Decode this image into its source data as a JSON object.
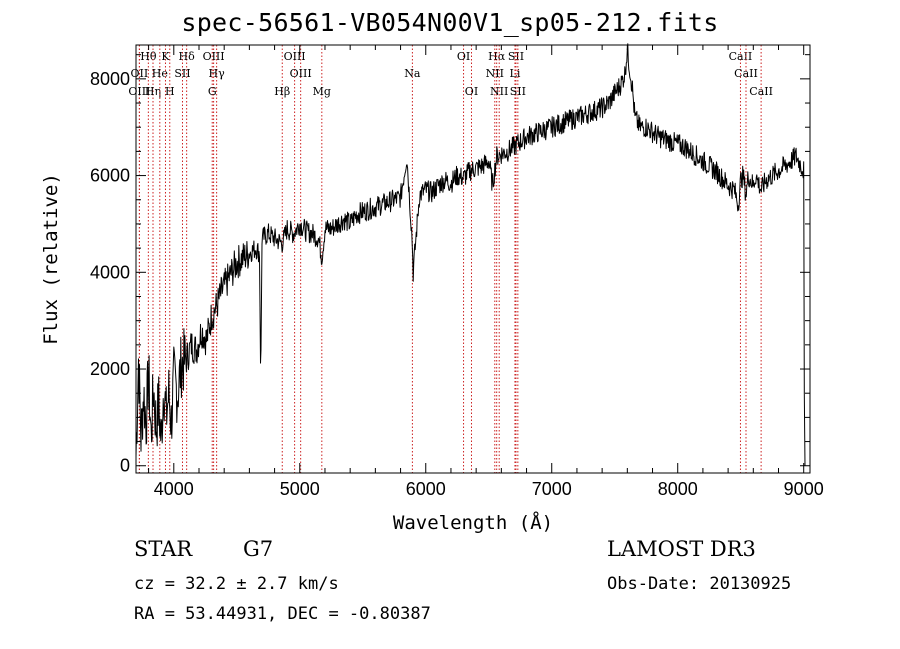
{
  "chart_data": {
    "type": "line",
    "title": "spec-56561-VB054N00V1_sp05-212.fits",
    "xlabel": "Wavelength (Å)",
    "ylabel": "Flux (relative)",
    "xlim": [
      3700,
      9050
    ],
    "ylim": [
      -150,
      8700
    ],
    "xticks": [
      4000,
      5000,
      6000,
      7000,
      8000,
      9000
    ],
    "yticks": [
      0,
      2000,
      4000,
      6000,
      8000
    ],
    "series": [
      {
        "name": "flux",
        "x": [
          3700,
          3720,
          3740,
          3760,
          3780,
          3800,
          3820,
          3840,
          3860,
          3880,
          3900,
          3920,
          3940,
          3960,
          3980,
          4000,
          4030,
          4060,
          4100,
          4140,
          4180,
          4220,
          4260,
          4300,
          4340,
          4380,
          4420,
          4460,
          4500,
          4550,
          4600,
          4650,
          4680,
          4690,
          4700,
          4750,
          4800,
          4861,
          4900,
          4950,
          5000,
          5050,
          5100,
          5150,
          5175,
          5200,
          5250,
          5300,
          5350,
          5400,
          5450,
          5500,
          5550,
          5600,
          5650,
          5700,
          5750,
          5800,
          5850,
          5890,
          5900,
          5950,
          6000,
          6050,
          6100,
          6150,
          6200,
          6250,
          6300,
          6350,
          6400,
          6450,
          6500,
          6530,
          6563,
          6600,
          6650,
          6700,
          6750,
          6800,
          6850,
          6900,
          6950,
          7000,
          7050,
          7100,
          7150,
          7200,
          7250,
          7300,
          7350,
          7400,
          7450,
          7500,
          7550,
          7580,
          7600,
          7620,
          7640,
          7660,
          7700,
          7750,
          7800,
          7850,
          7900,
          7950,
          8000,
          8050,
          8100,
          8150,
          8200,
          8250,
          8300,
          8350,
          8400,
          8450,
          8480,
          8500,
          8520,
          8542,
          8560,
          8600,
          8620,
          8662,
          8700,
          8750,
          8800,
          8850,
          8900,
          8940,
          8960,
          8980,
          9000
        ],
        "values": [
          200,
          2200,
          600,
          1500,
          900,
          1900,
          600,
          1600,
          800,
          1300,
          500,
          1700,
          1000,
          1500,
          900,
          1800,
          1500,
          2100,
          2200,
          2500,
          2400,
          2800,
          2600,
          3100,
          3300,
          3600,
          3800,
          4000,
          4200,
          4300,
          4400,
          4500,
          4400,
          1700,
          4700,
          4800,
          4700,
          4600,
          4900,
          4800,
          5000,
          4850,
          4800,
          4700,
          4300,
          4900,
          4900,
          5000,
          5100,
          5000,
          5200,
          5250,
          5300,
          5350,
          5400,
          5450,
          5500,
          5550,
          6400,
          4800,
          4000,
          5600,
          5700,
          5650,
          5800,
          5900,
          5850,
          6000,
          5950,
          6100,
          6150,
          6200,
          6300,
          5800,
          6400,
          6450,
          6500,
          6600,
          6700,
          6800,
          6850,
          6900,
          6950,
          7000,
          7050,
          7100,
          7150,
          7200,
          7250,
          7300,
          7350,
          7400,
          7500,
          7700,
          7900,
          8100,
          8600,
          8200,
          7800,
          7200,
          7000,
          7000,
          6900,
          6800,
          6750,
          6700,
          6650,
          6600,
          6500,
          6400,
          6300,
          6200,
          6100,
          5950,
          5800,
          5700,
          5400,
          5900,
          6000,
          5600,
          6000,
          5800,
          6000,
          5700,
          5900,
          6000,
          6100,
          6200,
          6300,
          6400,
          6300,
          6200,
          6100
        ]
      }
    ],
    "line_markers": [
      {
        "label": "Hθ",
        "wavelength": 3798,
        "row": 0
      },
      {
        "label": "OII",
        "wavelength": 3727,
        "row": 1
      },
      {
        "label": "OIII",
        "wavelength": 3727,
        "row": 2
      },
      {
        "label": "Hη",
        "wavelength": 3835,
        "row": 2
      },
      {
        "label": "He",
        "wavelength": 3889,
        "row": 1
      },
      {
        "label": "K",
        "wavelength": 3934,
        "row": 0
      },
      {
        "label": "H",
        "wavelength": 3968,
        "row": 2
      },
      {
        "label": "SII",
        "wavelength": 4069,
        "row": 1
      },
      {
        "label": "Hδ",
        "wavelength": 4102,
        "row": 0
      },
      {
        "label": "OIII",
        "wavelength": 4316,
        "row": 0
      },
      {
        "label": "Hγ",
        "wavelength": 4340,
        "row": 1
      },
      {
        "label": "G",
        "wavelength": 4305,
        "row": 2
      },
      {
        "label": "Hβ",
        "wavelength": 4861,
        "row": 2
      },
      {
        "label": "OIII",
        "wavelength": 4959,
        "row": 0
      },
      {
        "label": "OIII",
        "wavelength": 5007,
        "row": 1
      },
      {
        "label": "Mg",
        "wavelength": 5175,
        "row": 2
      },
      {
        "label": "Na",
        "wavelength": 5894,
        "row": 1
      },
      {
        "label": "OI",
        "wavelength": 6300,
        "row": 0
      },
      {
        "label": "OI",
        "wavelength": 6363,
        "row": 2
      },
      {
        "label": "Hα",
        "wavelength": 6563,
        "row": 0
      },
      {
        "label": "NII",
        "wavelength": 6548,
        "row": 1
      },
      {
        "label": "NII",
        "wavelength": 6583,
        "row": 2
      },
      {
        "label": "SII",
        "wavelength": 6716,
        "row": 0
      },
      {
        "label": "Li",
        "wavelength": 6708,
        "row": 1
      },
      {
        "label": "SII",
        "wavelength": 6731,
        "row": 2
      },
      {
        "label": "CaII",
        "wavelength": 8498,
        "row": 0
      },
      {
        "label": "CaII",
        "wavelength": 8542,
        "row": 1
      },
      {
        "label": "CaII",
        "wavelength": 8662,
        "row": 2
      }
    ],
    "line_color": "#000000",
    "marker_color": "#cc2222"
  },
  "info": {
    "object_class": "STAR",
    "subclass": "G7",
    "survey": "LAMOST DR3",
    "cz": "cz = 32.2 ± 2.7 km/s",
    "obs_date": "Obs-Date: 20130925",
    "radec": "RA =  53.44931, DEC =  -0.80387"
  }
}
